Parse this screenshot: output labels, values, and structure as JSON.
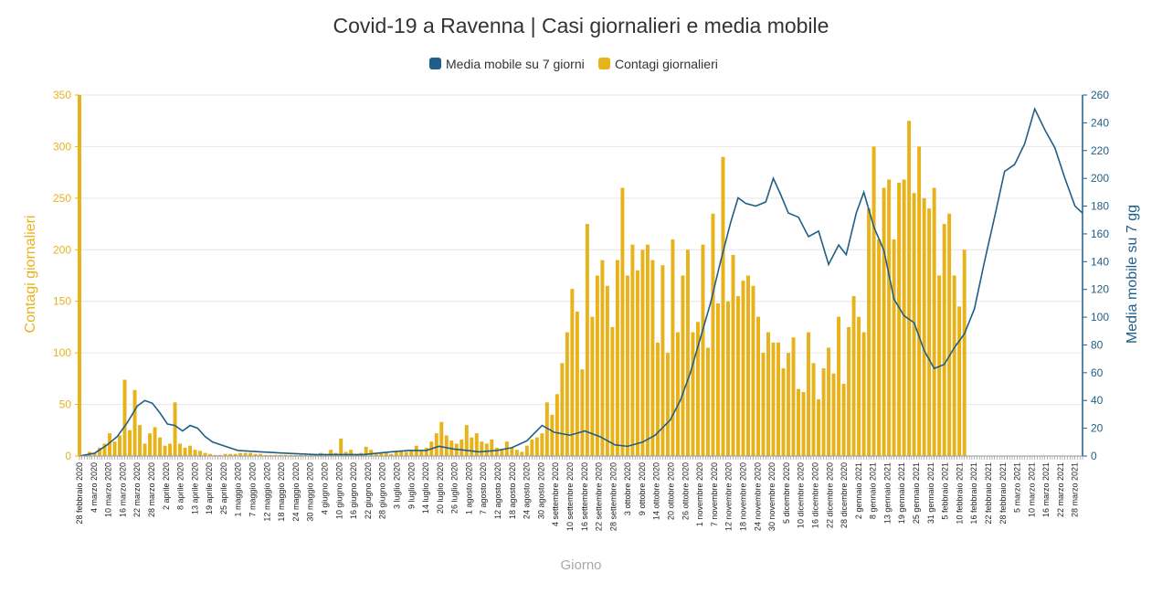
{
  "chart_data": {
    "type": "bar",
    "title": "Covid-19 a Ravenna | Casi giornalieri e media mobile",
    "legend": {
      "position": "top-center",
      "items": [
        {
          "label": "Media mobile su 7 giorni",
          "color": "#1f5f87"
        },
        {
          "label": "Contagi giornalieri",
          "color": "#e8b21a"
        }
      ]
    },
    "xlabel": "Giorno",
    "ylabel_left": "Contagi giornalieri",
    "ylabel_right": "Media mobile su 7 gg",
    "ylim_left": [
      0,
      350
    ],
    "yticks_left": [
      0,
      50,
      100,
      150,
      200,
      250,
      300,
      350
    ],
    "ylim_right": [
      0,
      260
    ],
    "yticks_right": [
      0,
      20,
      40,
      60,
      80,
      100,
      120,
      140,
      160,
      180,
      200,
      220,
      240,
      260
    ],
    "x_start": "2020-02-28",
    "x_end": "2021-04-02",
    "x_tick_labels": [
      "28 febbraio 2020",
      "4 marzo 2020",
      "10 marzo 2020",
      "16 marzo 2020",
      "22 marzo 2020",
      "28 marzo 2020",
      "2 aprile 2020",
      "8 aprile 2020",
      "13 aprile 2020",
      "19 aprile 2020",
      "25 aprile 2020",
      "1 maggio 2020",
      "7 maggio 2020",
      "12 maggio 2020",
      "18 maggio 2020",
      "24 maggio 2020",
      "30 maggio 2020",
      "4 giugno 2020",
      "10 giugno 2020",
      "16 giugno 2020",
      "22 giugno 2020",
      "28 giugno 2020",
      "3 luglio 2020",
      "9 luglio 2020",
      "14 luglio 2020",
      "20 luglio 2020",
      "26 luglio 2020",
      "1 agosto 2020",
      "7 agosto 2020",
      "12 agosto 2020",
      "18 agosto 2020",
      "24 agosto 2020",
      "30 agosto 2020",
      "4 settembre 2020",
      "10 settembre 2020",
      "16 settembre 2020",
      "22 settembre 2020",
      "28 settembre 2020",
      "3 ottobre 2020",
      "9 ottobre 2020",
      "14 ottobre 2020",
      "20 ottobre 2020",
      "26 ottobre 2020",
      "1 novembre 2020",
      "7 novembre 2020",
      "12 novembre 2020",
      "18 novembre 2020",
      "24 novembre 2020",
      "30 novembre 2020",
      "5 dicembre 2020",
      "10 dicembre 2020",
      "16 dicembre 2020",
      "22 dicembre 2020",
      "28 dicembre 2020",
      "2 gennaio 2021",
      "8 gennaio 2021",
      "13 gennaio 2021",
      "19 gennaio 2021",
      "25 gennaio 2021",
      "31 gennaio 2021",
      "5 febbraio 2021",
      "10 febbraio 2021",
      "16 febbraio 2021",
      "22 febbraio 2021",
      "28 febbraio 2021",
      "5 marzo 2021",
      "10 marzo 2021",
      "16 marzo 2021",
      "22 marzo 2021",
      "28 marzo 2021"
    ],
    "series": [
      {
        "name": "Contagi giornalieri",
        "axis": "left",
        "kind": "bar",
        "color": "#e8b21a",
        "sampled_every_days": 2,
        "values": [
          350,
          1,
          4,
          3,
          8,
          12,
          22,
          14,
          20,
          74,
          25,
          64,
          30,
          12,
          22,
          28,
          18,
          10,
          12,
          52,
          12,
          8,
          10,
          6,
          5,
          3,
          2,
          1,
          1,
          2,
          2,
          2,
          3,
          3,
          3,
          2,
          2,
          1,
          1,
          1,
          1,
          1,
          1,
          1,
          1,
          1,
          1,
          2,
          3,
          2,
          6,
          3,
          17,
          4,
          6,
          2,
          3,
          9,
          6,
          2,
          3,
          3,
          2,
          4,
          5,
          4,
          6,
          10,
          6,
          8,
          14,
          22,
          33,
          20,
          15,
          12,
          16,
          30,
          18,
          22,
          14,
          12,
          16,
          8,
          6,
          14,
          8,
          6,
          4,
          10,
          16,
          18,
          22,
          52,
          40,
          60,
          90,
          120,
          162,
          140,
          84,
          225,
          135,
          175,
          190,
          165,
          125,
          190,
          260,
          175,
          205,
          180,
          200,
          205,
          190,
          110,
          185,
          100,
          210,
          120,
          175,
          200,
          120,
          130,
          205,
          105,
          235,
          148,
          290,
          150,
          195,
          155,
          170,
          175,
          165,
          135,
          100,
          120,
          110,
          110,
          85,
          100,
          115,
          65,
          62,
          120,
          90,
          55,
          85,
          105,
          80,
          135,
          70,
          125,
          155,
          135,
          120,
          240,
          300,
          210,
          260,
          268,
          210,
          265,
          268,
          325,
          255,
          300,
          250,
          240,
          260,
          175,
          225,
          235,
          175,
          145,
          200
        ]
      },
      {
        "name": "Media mobile su 7 giorni",
        "axis": "right",
        "kind": "line",
        "color": "#1f5f87",
        "points": [
          [
            "2020-02-28",
            0
          ],
          [
            "2020-03-05",
            2
          ],
          [
            "2020-03-10",
            8
          ],
          [
            "2020-03-14",
            14
          ],
          [
            "2020-03-18",
            24
          ],
          [
            "2020-03-22",
            36
          ],
          [
            "2020-03-25",
            40
          ],
          [
            "2020-03-28",
            38
          ],
          [
            "2020-03-31",
            31
          ],
          [
            "2020-04-03",
            23
          ],
          [
            "2020-04-06",
            22
          ],
          [
            "2020-04-09",
            18
          ],
          [
            "2020-04-12",
            22
          ],
          [
            "2020-04-15",
            20
          ],
          [
            "2020-04-18",
            14
          ],
          [
            "2020-04-21",
            10
          ],
          [
            "2020-04-26",
            7
          ],
          [
            "2020-05-01",
            4
          ],
          [
            "2020-05-10",
            3
          ],
          [
            "2020-05-20",
            2
          ],
          [
            "2020-06-01",
            1
          ],
          [
            "2020-06-10",
            1
          ],
          [
            "2020-06-20",
            1
          ],
          [
            "2020-07-01",
            3
          ],
          [
            "2020-07-08",
            4
          ],
          [
            "2020-07-15",
            4
          ],
          [
            "2020-07-20",
            7
          ],
          [
            "2020-07-26",
            5
          ],
          [
            "2020-08-05",
            3
          ],
          [
            "2020-08-12",
            4
          ],
          [
            "2020-08-18",
            6
          ],
          [
            "2020-08-24",
            11
          ],
          [
            "2020-08-30",
            22
          ],
          [
            "2020-09-04",
            17
          ],
          [
            "2020-09-10",
            15
          ],
          [
            "2020-09-16",
            18
          ],
          [
            "2020-09-22",
            14
          ],
          [
            "2020-09-28",
            8
          ],
          [
            "2020-10-03",
            7
          ],
          [
            "2020-10-09",
            10
          ],
          [
            "2020-10-14",
            15
          ],
          [
            "2020-10-20",
            26
          ],
          [
            "2020-10-24",
            40
          ],
          [
            "2020-10-28",
            60
          ],
          [
            "2020-11-01",
            85
          ],
          [
            "2020-11-05",
            110
          ],
          [
            "2020-11-09",
            140
          ],
          [
            "2020-11-13",
            168
          ],
          [
            "2020-11-16",
            186
          ],
          [
            "2020-11-19",
            182
          ],
          [
            "2020-11-23",
            180
          ],
          [
            "2020-11-27",
            183
          ],
          [
            "2020-11-30",
            200
          ],
          [
            "2020-12-03",
            188
          ],
          [
            "2020-12-06",
            175
          ],
          [
            "2020-12-10",
            172
          ],
          [
            "2020-12-14",
            158
          ],
          [
            "2020-12-18",
            162
          ],
          [
            "2020-12-22",
            138
          ],
          [
            "2020-12-26",
            152
          ],
          [
            "2020-12-29",
            145
          ],
          [
            "2021-01-02",
            175
          ],
          [
            "2021-01-05",
            190
          ],
          [
            "2021-01-09",
            165
          ],
          [
            "2021-01-13",
            148
          ],
          [
            "2021-01-17",
            113
          ],
          [
            "2021-01-21",
            101
          ],
          [
            "2021-01-25",
            96
          ],
          [
            "2021-01-29",
            76
          ],
          [
            "2021-02-02",
            63
          ],
          [
            "2021-02-06",
            66
          ],
          [
            "2021-02-10",
            78
          ],
          [
            "2021-02-14",
            88
          ],
          [
            "2021-02-18",
            106
          ],
          [
            "2021-02-22",
            140
          ],
          [
            "2021-02-26",
            172
          ],
          [
            "2021-03-02",
            205
          ],
          [
            "2021-03-06",
            210
          ],
          [
            "2021-03-10",
            225
          ],
          [
            "2021-03-14",
            250
          ],
          [
            "2021-03-18",
            235
          ],
          [
            "2021-03-22",
            222
          ],
          [
            "2021-03-26",
            200
          ],
          [
            "2021-03-30",
            180
          ],
          [
            "2021-04-02",
            175
          ]
        ]
      }
    ],
    "grid": true
  }
}
